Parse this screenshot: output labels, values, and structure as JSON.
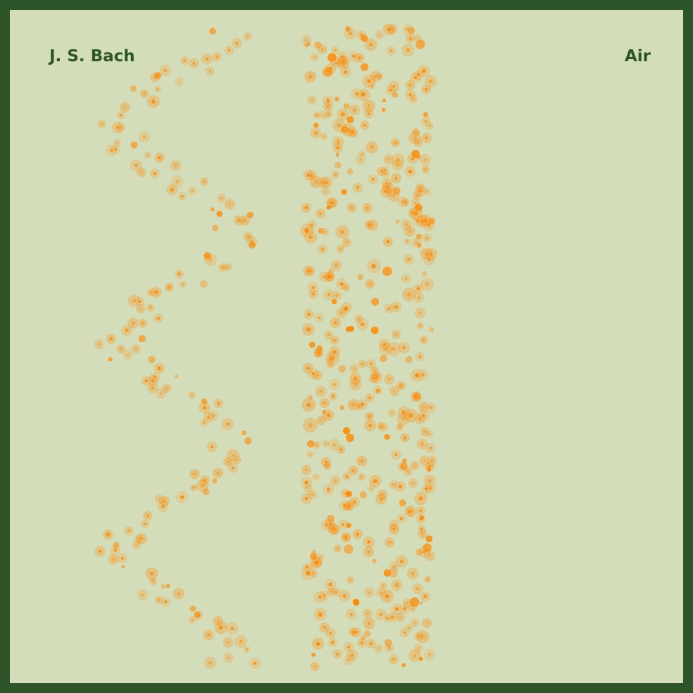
{
  "poster": {
    "composer": "J. S. Bach",
    "piece": "Air"
  },
  "colors": {
    "frame": "#2d5529",
    "background": "#d4ddb9",
    "text": "#2d5529",
    "note": "#ff8800"
  },
  "notes_icon": "orange-circle-dots"
}
